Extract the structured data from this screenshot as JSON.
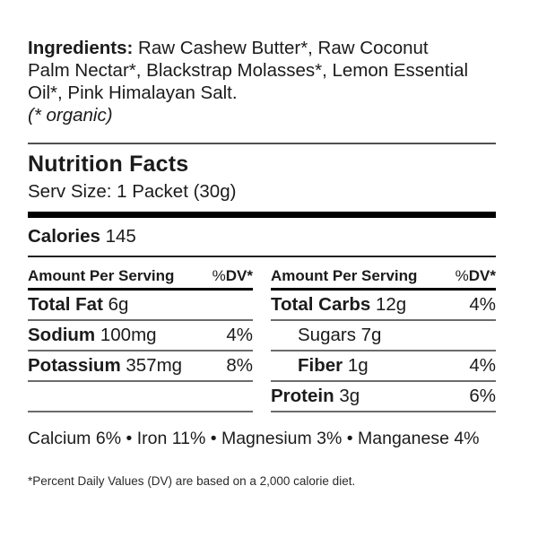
{
  "ingredients": {
    "label": "Ingredients:",
    "line1": "Raw Cashew Butter*, Raw Coconut",
    "line2": "Palm Nectar*, Blackstrap Molasses*, Lemon Essential",
    "line3": "Oil*, Pink Himalayan Salt.",
    "organic_note": "(* organic)"
  },
  "nutrition_facts": {
    "title": "Nutrition Facts",
    "serving_size": "Serv Size: 1 Packet (30g)",
    "calories_label": "Calories",
    "calories_value": "145",
    "columns": [
      {
        "header_label": "Amount Per Serving",
        "header_dv_percent": "%",
        "header_dv_bold": "DV*",
        "rows": [
          {
            "name": "Total Fat",
            "amount": "6g",
            "dv": "",
            "bold": true,
            "indent": false,
            "empty": false
          },
          {
            "name": "Sodium",
            "amount": "100mg",
            "dv": "4%",
            "bold": true,
            "indent": false,
            "empty": false
          },
          {
            "name": "Potassium",
            "amount": "357mg",
            "dv": "8%",
            "bold": true,
            "indent": false,
            "empty": false
          },
          {
            "name": "",
            "amount": "",
            "dv": "",
            "bold": false,
            "indent": false,
            "empty": true
          }
        ]
      },
      {
        "header_label": "Amount Per Serving",
        "header_dv_percent": "%",
        "header_dv_bold": "DV*",
        "rows": [
          {
            "name": "Total Carbs",
            "amount": "12g",
            "dv": "4%",
            "bold": true,
            "indent": false,
            "empty": false
          },
          {
            "name": "Sugars",
            "amount": "7g",
            "dv": "",
            "bold": false,
            "indent": true,
            "empty": false
          },
          {
            "name": "Fiber",
            "amount": "1g",
            "dv": "4%",
            "bold": true,
            "indent": true,
            "empty": false
          },
          {
            "name": "Protein",
            "amount": "3g",
            "dv": "6%",
            "bold": true,
            "indent": false,
            "empty": false
          }
        ]
      }
    ]
  },
  "minerals_line": "Calcium 6% • Iron 11% • Magnesium 3% • Manganese 4%",
  "footnote": "*Percent Daily Values (DV) are based on a 2,000 calorie diet.",
  "colors": {
    "text": "#1b1b1b",
    "row_divider_gray": "#6a6b6d",
    "top_rule_gray": "#4f5052",
    "thick_bar_black": "#000000",
    "background": "#ffffff"
  }
}
